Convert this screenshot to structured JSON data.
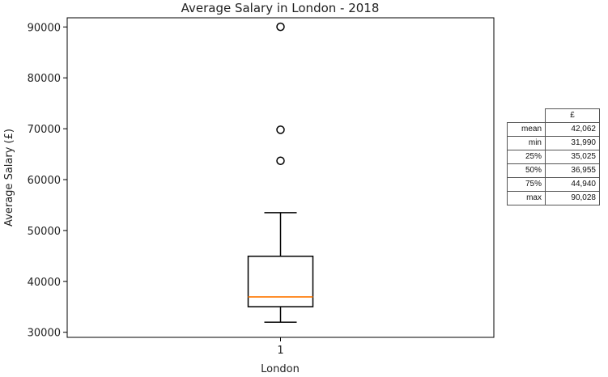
{
  "chart_data": {
    "type": "box",
    "title": "Average Salary in London - 2018",
    "xlabel": "London",
    "ylabel": "Average Salary (£)",
    "categories": [
      "1"
    ],
    "yticks": [
      30000,
      40000,
      50000,
      60000,
      70000,
      80000,
      90000
    ],
    "ylim": [
      29000,
      91800
    ],
    "grid": false,
    "box": {
      "whisker_low": 31990,
      "q1": 35025,
      "median": 36955,
      "q3": 44940,
      "whisker_high": 53500
    },
    "outliers": [
      63700,
      69800,
      90028
    ],
    "colors": {
      "median": "#ff7f0e",
      "box": "#000000",
      "outlier": "#000000"
    }
  },
  "stats_table": {
    "header": "£",
    "rows": [
      {
        "label": "mean",
        "value": "42,062"
      },
      {
        "label": "min",
        "value": "31,990"
      },
      {
        "label": "25%",
        "value": "35,025"
      },
      {
        "label": "50%",
        "value": "36,955"
      },
      {
        "label": "75%",
        "value": "44,940"
      },
      {
        "label": "max",
        "value": "90,028"
      }
    ]
  }
}
